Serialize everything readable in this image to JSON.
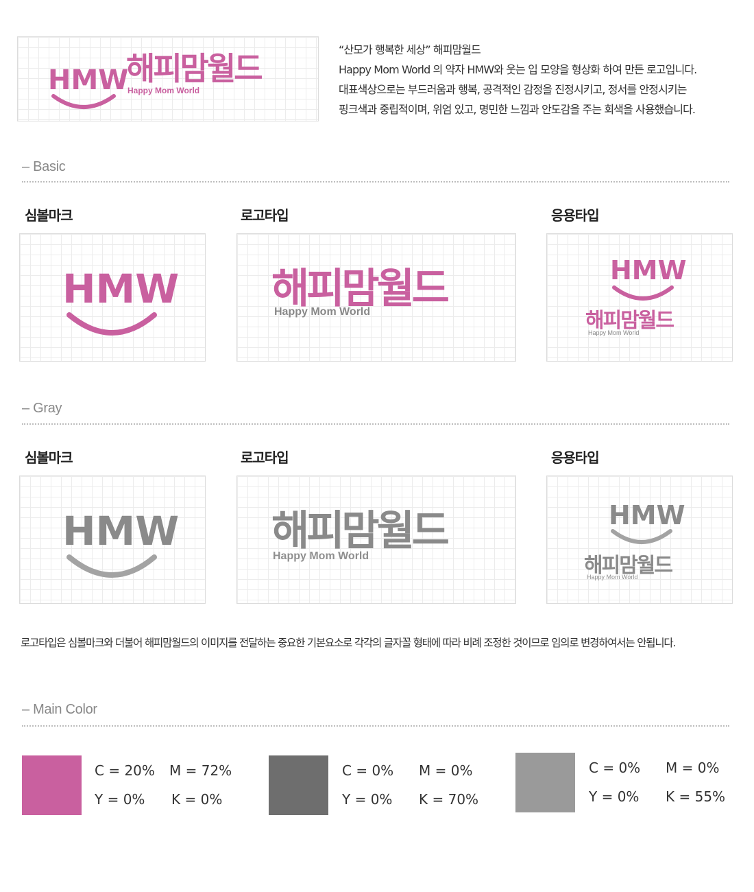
{
  "brand": {
    "symbol_text": "HMW",
    "korean_name": "해피맘월드",
    "english_name": "Happy Mom World"
  },
  "intro": {
    "lines": [
      "“산모가 행복한 세상” 해피맘월드",
      "Happy Mom World 의 약자 HMW와 웃는 입 모양을 형상화 하여 만든 로고입니다.",
      "대표색상으로는 부드러움과 행복, 공격적인 감정을 진정시키고, 정서를 안정시키는",
      "핑크색과 중립적이며, 위엄 있고, 명민한 느낌과 안도감을 주는 회색을 사용했습니다."
    ]
  },
  "sections": {
    "basic": {
      "title": "– Basic",
      "labels": [
        "심볼마크",
        "로고타입",
        "응용타입"
      ]
    },
    "gray": {
      "title": "– Gray",
      "labels": [
        "심볼마크",
        "로고타입",
        "응용타입"
      ]
    },
    "main_color": {
      "title": "– Main Color"
    }
  },
  "notice": "로고타입은 심볼마크와 더불어 해피맘월드의 이미지를 전달하는 중요한 기본요소로 각각의 글자꼴 형태에 따라 비례 조정한 것이므로 임의로 변경하여서는 안됩니다.",
  "colors": {
    "pink": "#c9609f",
    "dark_gray": "#6e6e6e",
    "light_gray": "#9a9a9a",
    "gray_logo_dark": "#6f6f6f",
    "gray_logo_light": "#a3a3a3"
  },
  "swatches": [
    {
      "color": "#c9609f",
      "c": "C = 20%",
      "m": "M = 72%",
      "y": "Y = 0%",
      "k": "K = 0%"
    },
    {
      "color": "#6e6e6e",
      "c": "C = 0%",
      "m": "M = 0%",
      "y": "Y = 0%",
      "k": "K = 70%"
    },
    {
      "color": "#9a9a9a",
      "c": "C = 0%",
      "m": "M = 0%",
      "y": "Y = 0%",
      "k": "K = 55%"
    }
  ]
}
